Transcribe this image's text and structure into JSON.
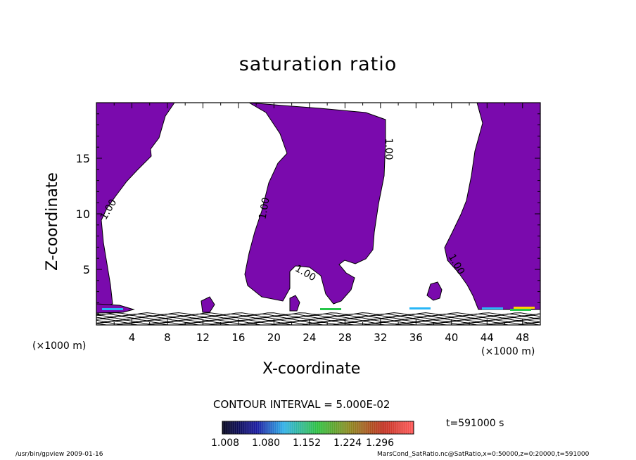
{
  "chart_data": {
    "type": "contour",
    "title": "saturation ratio",
    "xlabel": "X-coordinate",
    "ylabel": "Z-coordinate",
    "x_unit_label": "(×1000 m)",
    "xlim": [
      0,
      50
    ],
    "ylim": [
      0,
      20
    ],
    "x_ticks": [
      4,
      8,
      12,
      16,
      20,
      24,
      28,
      32,
      36,
      40,
      44,
      48
    ],
    "y_ticks": [
      5,
      10,
      15
    ],
    "contour_interval_label": "CONTOUR INTERVAL = 5.000E-02",
    "contour_labels": [
      "1.00",
      "1.00",
      "1.00",
      "1.00",
      "1.00"
    ],
    "fill_color": "#7a0aad",
    "colorbar": {
      "tick_labels": [
        "1.008",
        "1.080",
        "1.152",
        "1.224",
        "1.296"
      ]
    },
    "time_label": "t=591000 s"
  },
  "footer": {
    "left": "/usr/bin/gpview   2009-01-16",
    "right": "MarsCond_SatRatio.nc@SatRatio,x=0:50000,z=0:20000,t=591000"
  }
}
